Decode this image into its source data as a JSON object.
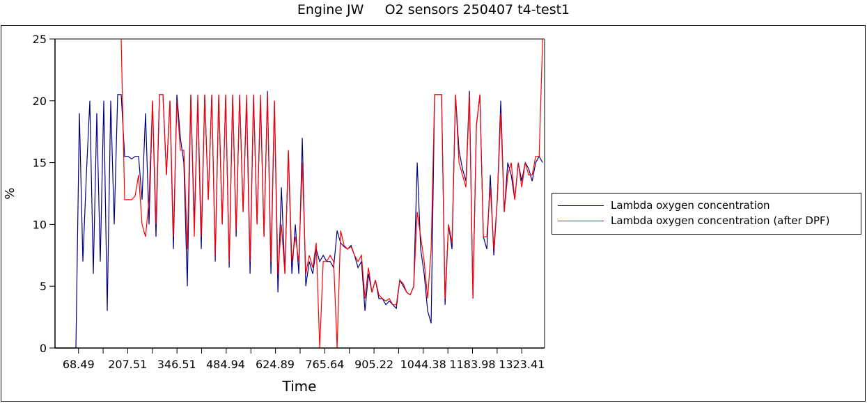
{
  "chart_data": {
    "type": "line",
    "title": "Engine JW     O2 sensors 250407 t4-test1",
    "xlabel": "Time",
    "ylabel": "%",
    "xlim": [
      2,
      1388
    ],
    "ylim": [
      0,
      25
    ],
    "yticks": [
      0,
      5,
      10,
      15,
      20,
      25
    ],
    "xtick_labels": [
      "68.49",
      "207.51",
      "346.51",
      "484.94",
      "624.89",
      "765.64",
      "905.22",
      "1044.38",
      "1183.98",
      "1323.41"
    ],
    "grid": false,
    "legend_position": "right",
    "x_start": 2,
    "x_step": 9.86,
    "series": [
      {
        "name": "Lambda oxygen concentration",
        "color": "#000080",
        "values": [
          0,
          0,
          0,
          0,
          0,
          0,
          0,
          19,
          7,
          14,
          20,
          6,
          19,
          7,
          20,
          3,
          20,
          10,
          20.5,
          20.5,
          15.5,
          15.5,
          15.3,
          15.5,
          15.5,
          12,
          19,
          10,
          20,
          9,
          20.5,
          20.5,
          14,
          20,
          8,
          20.5,
          17,
          15,
          5,
          20.5,
          10,
          20,
          8,
          20.5,
          12,
          20.5,
          7,
          20.5,
          10,
          20.5,
          6.5,
          20.5,
          9,
          20.5,
          11,
          20,
          6,
          20.5,
          10,
          20,
          9,
          20.8,
          6,
          20,
          4.5,
          13,
          6,
          16,
          6,
          10,
          6,
          17,
          5,
          7,
          6,
          8,
          7,
          7.5,
          7,
          7,
          6.5,
          9.5,
          8.5,
          8.2,
          8,
          8.3,
          7.5,
          6.5,
          7,
          3,
          6,
          4.5,
          5.5,
          4,
          4,
          3.5,
          3.8,
          3.5,
          3.2,
          5.5,
          5,
          4.5,
          4.3,
          5,
          15,
          8,
          6,
          3,
          2,
          20.5,
          20.5,
          20.5,
          3.5,
          10,
          8,
          20.5,
          16,
          14.5,
          13.5,
          20.8,
          4,
          18,
          20.5,
          9,
          8,
          14,
          7.5,
          12,
          20,
          11,
          15,
          14,
          12,
          15,
          13.5,
          15,
          14.5,
          13.5,
          15,
          15.5,
          15
        ]
      },
      {
        "name": "Lambda oxygen concentration (after DPF)",
        "color": "#ff0000",
        "values": [
          null,
          null,
          null,
          null,
          null,
          null,
          null,
          null,
          null,
          null,
          null,
          null,
          null,
          null,
          null,
          null,
          null,
          null,
          null,
          25,
          12,
          12,
          12,
          12.3,
          14,
          10,
          9,
          12,
          20,
          10,
          20.5,
          20.5,
          14,
          20,
          9,
          20,
          16,
          16,
          8,
          20.5,
          9,
          20.5,
          9,
          20.5,
          12,
          20.5,
          7.5,
          20.5,
          10,
          20.5,
          7,
          20.5,
          9.5,
          20.5,
          11,
          20.5,
          7,
          20.5,
          10,
          20.5,
          9,
          20.5,
          7,
          20,
          6,
          10,
          6,
          16,
          7,
          9,
          7,
          15,
          6,
          7.5,
          6.5,
          8.5,
          0,
          7,
          7,
          7.5,
          7,
          0,
          9.5,
          8.3,
          8,
          8.2,
          7.5,
          7,
          7.5,
          4,
          6.5,
          4.5,
          5.5,
          4.3,
          4,
          3.8,
          4,
          3.5,
          3.5,
          5.5,
          5.2,
          4.5,
          4.3,
          5,
          11,
          9,
          7,
          4,
          8,
          20.5,
          20.5,
          20.5,
          4,
          10,
          8.5,
          20.5,
          15,
          14,
          13,
          20.5,
          4,
          18,
          20.5,
          9,
          9,
          13,
          8,
          12,
          19,
          11,
          14,
          15,
          12,
          15,
          13,
          15,
          14,
          14,
          15.5,
          15.5,
          25
        ]
      }
    ]
  }
}
